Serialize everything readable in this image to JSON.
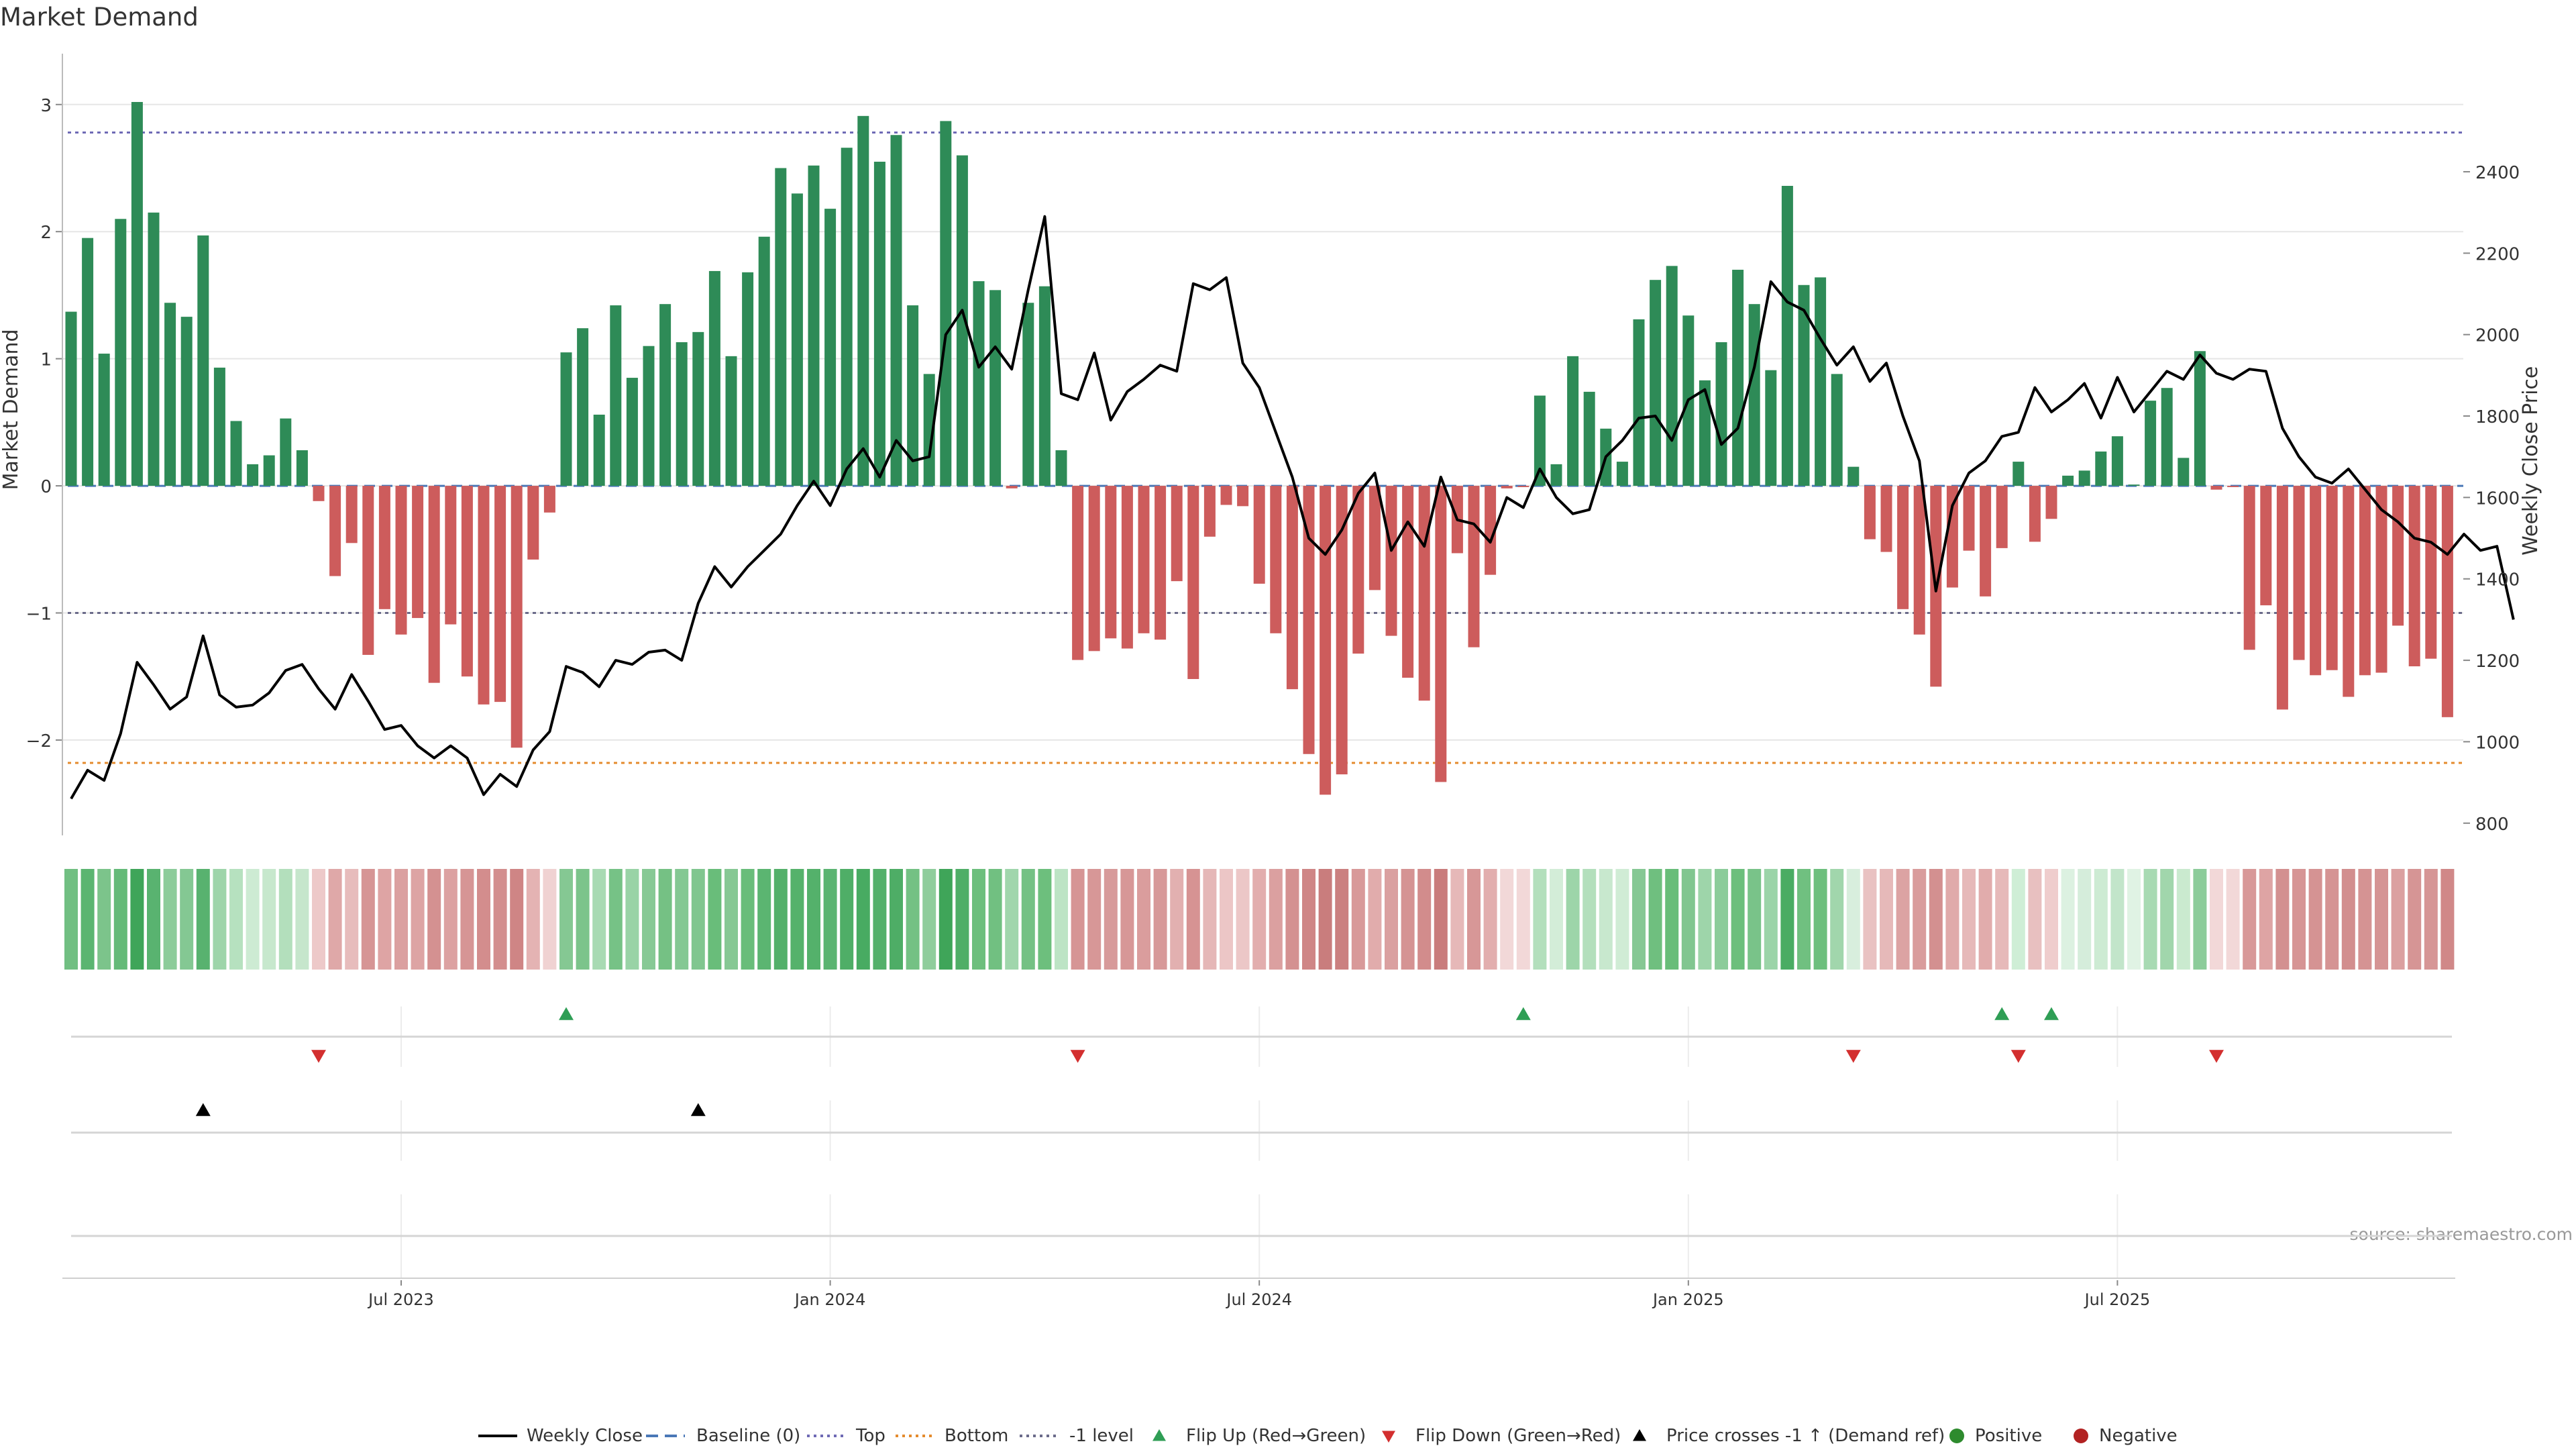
{
  "chart_data": {
    "type": "bar",
    "title": "Market Demand",
    "ylabel_left": "Market Demand",
    "ylabel_right": "Weekly Close Price",
    "source": "source: sharemaestro.com",
    "left_axis": {
      "ylim": [
        -2.75,
        3.4
      ],
      "ticks": [
        -2,
        -1,
        0,
        1,
        2,
        3
      ],
      "tick_labels": [
        "−2",
        "−1",
        "0",
        "1",
        "2",
        "3"
      ]
    },
    "right_axis": {
      "ylim": [
        770,
        2690
      ],
      "ticks": [
        800,
        1000,
        1200,
        1400,
        1600,
        1800,
        2000,
        2200,
        2400
      ],
      "tick_labels": [
        "800",
        "1000",
        "1200",
        "1400",
        "1600",
        "1800",
        "2000",
        "2200",
        "2400"
      ]
    },
    "x_ticks": [
      {
        "label": "Jul 2023",
        "index": 20
      },
      {
        "label": "Jan 2024",
        "index": 46
      },
      {
        "label": "Jul 2024",
        "index": 72
      },
      {
        "label": "Jan 2025",
        "index": 98
      },
      {
        "label": "Jul 2025",
        "index": 124
      }
    ],
    "reference_lines": {
      "top": 2.78,
      "bottom": -2.18,
      "minus_one": -1,
      "baseline": 0
    },
    "demand": [
      1.37,
      1.95,
      1.04,
      2.1,
      3.02,
      2.15,
      1.44,
      1.33,
      1.97,
      0.93,
      0.51,
      0.17,
      0.24,
      0.53,
      0.28,
      -0.12,
      -0.71,
      -0.45,
      -1.33,
      -0.97,
      -1.17,
      -1.04,
      -1.55,
      -1.09,
      -1.5,
      -1.72,
      -1.7,
      -2.06,
      -0.58,
      -0.21,
      1.05,
      1.24,
      0.56,
      1.42,
      0.85,
      1.1,
      1.43,
      1.13,
      1.21,
      1.69,
      1.02,
      1.68,
      1.96,
      2.5,
      2.3,
      2.52,
      2.18,
      2.66,
      2.91,
      2.55,
      2.76,
      1.42,
      0.88,
      2.87,
      2.6,
      1.61,
      1.54,
      -0.02,
      1.44,
      1.57,
      0.28,
      -1.37,
      -1.3,
      -1.2,
      -1.28,
      -1.16,
      -1.21,
      -0.75,
      -1.52,
      -0.4,
      -0.15,
      -0.16,
      -0.77,
      -1.16,
      -1.6,
      -2.11,
      -2.43,
      -2.27,
      -1.32,
      -0.82,
      -1.18,
      -1.51,
      -1.69,
      -2.33,
      -0.53,
      -1.27,
      -0.7,
      -0.02,
      -0.01,
      0.71,
      0.17,
      1.02,
      0.74,
      0.45,
      0.19,
      1.31,
      1.62,
      1.73,
      1.34,
      0.83,
      1.13,
      1.7,
      1.43,
      0.91,
      2.36,
      1.58,
      1.64,
      0.88,
      0.15,
      -0.42,
      -0.52,
      -0.97,
      -1.17,
      -1.58,
      -0.8,
      -0.51,
      -0.87,
      -0.49,
      0.19,
      -0.44,
      -0.26,
      0.08,
      0.12,
      0.27,
      0.39,
      0.01,
      0.67,
      0.77,
      0.22,
      1.06,
      -0.03,
      -0.01,
      -1.29,
      -0.94,
      -1.76,
      -1.37,
      -1.49,
      -1.45,
      -1.66,
      -1.49,
      -1.47,
      -1.1,
      -1.42,
      -1.36,
      -1.82
    ],
    "price": [
      860,
      930,
      905,
      1020,
      1195,
      1140,
      1080,
      1110,
      1260,
      1115,
      1085,
      1090,
      1120,
      1175,
      1190,
      1130,
      1080,
      1165,
      1100,
      1030,
      1040,
      990,
      960,
      990,
      960,
      870,
      920,
      890,
      980,
      1025,
      1185,
      1170,
      1135,
      1200,
      1190,
      1220,
      1225,
      1200,
      1340,
      1430,
      1380,
      1430,
      1470,
      1510,
      1580,
      1640,
      1580,
      1670,
      1720,
      1650,
      1740,
      1690,
      1700,
      2000,
      2060,
      1920,
      1970,
      1915,
      2110,
      2290,
      1855,
      1840,
      1955,
      1790,
      1860,
      1890,
      1925,
      1910,
      2125,
      2110,
      2140,
      1930,
      1870,
      1760,
      1650,
      1500,
      1460,
      1520,
      1610,
      1660,
      1470,
      1540,
      1480,
      1650,
      1545,
      1535,
      1490,
      1600,
      1575,
      1670,
      1600,
      1560,
      1570,
      1700,
      1740,
      1795,
      1800,
      1740,
      1840,
      1865,
      1730,
      1770,
      1920,
      2130,
      2080,
      2060,
      1990,
      1925,
      1970,
      1885,
      1930,
      1800,
      1690,
      1370,
      1580,
      1660,
      1690,
      1750,
      1760,
      1870,
      1810,
      1840,
      1880,
      1795,
      1895,
      1810,
      1860,
      1910,
      1890,
      1950,
      1905,
      1890,
      1915,
      1910,
      1770,
      1700,
      1650,
      1635,
      1670,
      1620,
      1570,
      1540,
      1500,
      1490,
      1460,
      1510,
      1470,
      1480,
      1300
    ],
    "heat_colors": [
      "#71bf82",
      "#5bb571",
      "#7cc48b",
      "#64ba78",
      "#3fa559",
      "#59b370",
      "#8ccc9a",
      "#84c893",
      "#58b26f",
      "#9ed5aa",
      "#b6e1bf",
      "#cdebd3",
      "#c7e8cd",
      "#b3dfbc",
      "#c6e6cc",
      "#edc9c9",
      "#dfa8a8",
      "#e7bcbc",
      "#d69595",
      "#dea4a4",
      "#dba0a0",
      "#dda4a4",
      "#d49191",
      "#dca1a1",
      "#d69595",
      "#d38d8d",
      "#d38e8e",
      "#cf8585",
      "#e4b3b3",
      "#f0d2d2",
      "#85c893",
      "#7cc48b",
      "#a8dab3",
      "#76c286",
      "#99d3a6",
      "#87c995",
      "#75c184",
      "#84c893",
      "#80c68f",
      "#69bd7a",
      "#86c894",
      "#69bd7a",
      "#5bb571",
      "#53b06a",
      "#55b26b",
      "#54b16b",
      "#5ab471",
      "#4fae67",
      "#48ab62",
      "#53b06a",
      "#4ead66",
      "#74c184",
      "#8fcd9c",
      "#3fa559",
      "#4fae67",
      "#6dbf7d",
      "#71c081",
      "#a0d6ac",
      "#74c184",
      "#6dbf7d",
      "#bde4c5",
      "#d69595",
      "#d79797",
      "#d79a9a",
      "#d79797",
      "#da9d9d",
      "#d79999",
      "#e2b0b0",
      "#d69393",
      "#e5b7b7",
      "#ecc6c6",
      "#ecc7c7",
      "#e2aeae",
      "#dba0a0",
      "#d49191",
      "#cf8686",
      "#c97d7d",
      "#cb8080",
      "#d89999",
      "#e1acac",
      "#daa0a0",
      "#d59393",
      "#d28c8c",
      "#c97c7c",
      "#e6b8b8",
      "#d79797",
      "#e2aeae",
      "#f2d8d8",
      "#f2d8d8",
      "#b3dfbc",
      "#d3edd8",
      "#9dd5a9",
      "#b3dfbc",
      "#c8e8ce",
      "#d0ecd5",
      "#86c894",
      "#6fbf7f",
      "#68bd79",
      "#81c690",
      "#9ed5aa",
      "#8ccc9a",
      "#6cbf7c",
      "#79c389",
      "#9bd4a8",
      "#4aac63",
      "#70c080",
      "#6dbf7d",
      "#a1d6ac",
      "#d8eedd",
      "#e9c2c2",
      "#e6b9b9",
      "#dca3a3",
      "#d99c9c",
      "#d39090",
      "#e0aaaa",
      "#e6b9b9",
      "#e1acac",
      "#e6b9b9",
      "#cfeed6",
      "#e8c0c0",
      "#efcdcd",
      "#dcf1e1",
      "#d5eddb",
      "#cdebd3",
      "#c2e5ca",
      "#e0f3e4",
      "#a8dab3",
      "#a1d6ac",
      "#caeacf",
      "#8ccc9a",
      "#f2d8d8",
      "#f2d8d8",
      "#d89999",
      "#dea4a4",
      "#d39090",
      "#d69595",
      "#d59393",
      "#d59494",
      "#d28e8e",
      "#d59393",
      "#d59494",
      "#dba0a0",
      "#d69595",
      "#d69696",
      "#d08888"
    ],
    "flip_up": [
      30,
      88,
      117,
      120
    ],
    "flip_down": [
      15,
      61,
      108,
      118,
      130
    ],
    "price_cross": [
      8,
      38
    ],
    "legend": [
      {
        "label": "Weekly Close",
        "kind": "line",
        "color": "#000000"
      },
      {
        "label": "Baseline (0)",
        "kind": "dash",
        "color": "#4a78b7"
      },
      {
        "label": "Top",
        "kind": "dot",
        "color": "#6e6ab5"
      },
      {
        "label": "Bottom",
        "kind": "dot",
        "color": "#e48b2d"
      },
      {
        "label": "-1 level",
        "kind": "dot",
        "color": "#6b6b8a"
      },
      {
        "label": "Flip Up (Red→Green)",
        "kind": "tri-up",
        "color": "#2f9e55"
      },
      {
        "label": "Flip Down (Green→Red)",
        "kind": "tri-down",
        "color": "#d32f2f"
      },
      {
        "label": "Price crosses -1 ↑ (Demand ref)",
        "kind": "tri-up",
        "color": "#000000"
      },
      {
        "label": "Positive",
        "kind": "circle",
        "color": "#2e8b2e"
      },
      {
        "label": "Negative",
        "kind": "circle",
        "color": "#b22222"
      }
    ],
    "colors": {
      "positive_bar": "#2e8b57",
      "negative_bar": "#cd5c5c",
      "price_line": "#000000",
      "grid": "#e6e6e6",
      "axis_text": "#333333",
      "source_text": "#999999"
    }
  }
}
